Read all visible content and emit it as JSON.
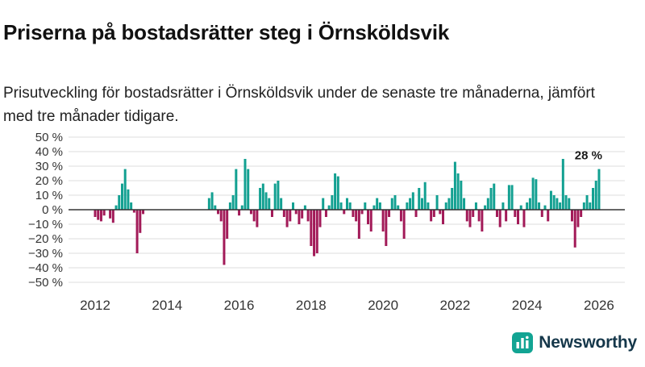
{
  "title": "Priserna på bostadsrätter steg i Örnsköldsvik",
  "subtitle": "Prisutveckling för bostadsrätter i Örnsköldsvik under de senaste tre månaderna, jämfört med tre månader tidigare.",
  "logo": {
    "text": "Newsworthy",
    "icon": "bar-chart-icon",
    "icon_color": "#12a493",
    "text_color": "#15374a"
  },
  "colors": {
    "positive_bar": "#12a091",
    "negative_bar": "#a21a58",
    "grid": "#dcdcdc",
    "zero_line": "#333333",
    "axis_text": "#333333"
  },
  "chart_data": {
    "type": "bar",
    "title": "Priserna på bostadsrätter steg i Örnsköldsvik",
    "subtitle": "Prisutveckling för bostadsrätter i Örnsköldsvik under de senaste tre månaderna, jämfört med tre månader tidigare.",
    "unit": "%",
    "frequency": "monthly",
    "x_start": "2012-01",
    "x_end": "2026-01",
    "x_tick_labels": [
      "2012",
      "2014",
      "2016",
      "2018",
      "2020",
      "2022",
      "2024",
      "2026"
    ],
    "y_tick_labels": [
      "50 %",
      "40 %",
      "30 %",
      "20 %",
      "10 %",
      "0 %",
      "−10 %",
      "−20 %",
      "−30 %",
      "−40 %",
      "−50 %"
    ],
    "ylim": [
      -50,
      50
    ],
    "grid": true,
    "legend": false,
    "annotation": {
      "text": "28 %",
      "value": 28,
      "position": "last-bar"
    },
    "values": [
      -5,
      -7,
      -8,
      -4,
      0,
      -6,
      -9,
      3,
      10,
      18,
      28,
      14,
      5,
      -2,
      -30,
      -16,
      -3,
      0,
      0,
      0,
      0,
      0,
      0,
      0,
      0,
      0,
      0,
      0,
      0,
      0,
      0,
      0,
      0,
      0,
      0,
      0,
      0,
      0,
      8,
      12,
      3,
      -3,
      -8,
      -38,
      -20,
      5,
      10,
      28,
      -4,
      3,
      35,
      28,
      -3,
      -8,
      -12,
      15,
      18,
      12,
      8,
      -5,
      18,
      20,
      8,
      -5,
      -12,
      -8,
      5,
      -3,
      -10,
      -6,
      3,
      -8,
      -25,
      -32,
      -30,
      -12,
      8,
      -5,
      3,
      10,
      25,
      23,
      5,
      -3,
      8,
      5,
      -5,
      -8,
      -20,
      -3,
      5,
      -10,
      -15,
      3,
      8,
      5,
      -15,
      -25,
      -5,
      8,
      10,
      3,
      -8,
      -20,
      5,
      8,
      12,
      -5,
      15,
      8,
      19,
      5,
      -8,
      -5,
      10,
      -3,
      -10,
      5,
      8,
      15,
      33,
      25,
      20,
      8,
      -8,
      -12,
      -5,
      5,
      -8,
      -15,
      3,
      8,
      15,
      18,
      -5,
      -12,
      5,
      -8,
      17,
      17,
      -5,
      -10,
      3,
      -12,
      5,
      8,
      22,
      21,
      5,
      -5,
      3,
      -8,
      13,
      10,
      8,
      5,
      35,
      10,
      8,
      -8,
      -26,
      -12,
      -5,
      5,
      10,
      5,
      15,
      20,
      28
    ]
  }
}
